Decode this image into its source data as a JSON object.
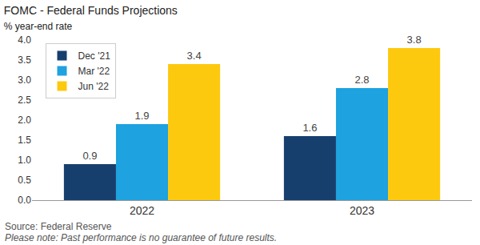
{
  "chart_data": {
    "type": "bar",
    "title": "FOMC - Federal Funds Projections",
    "subtitle": "% year-end rate",
    "categories": [
      "2022",
      "2023"
    ],
    "series": [
      {
        "name": "Dec '21",
        "color": "#173f6e",
        "values": [
          0.9,
          1.6
        ]
      },
      {
        "name": "Mar '22",
        "color": "#1ea2e0",
        "values": [
          1.9,
          2.8
        ]
      },
      {
        "name": "Jun '22",
        "color": "#fdc90f",
        "values": [
          3.4,
          3.8
        ]
      }
    ],
    "ylim": [
      0,
      4
    ],
    "yticks": [
      {
        "value": 0,
        "label": "0.0"
      },
      0.5,
      {
        "value": 1,
        "label": "1.0"
      },
      1.5,
      {
        "value": 2,
        "label": "2.0"
      },
      2.5,
      {
        "value": 3,
        "label": "3.0"
      },
      3.5,
      {
        "value": 4,
        "label": "4.0"
      }
    ],
    "grid": false,
    "legend": "top-left",
    "data_labels": true,
    "annotations": [
      "Source: Federal Reserve",
      "Please note: Past performance is no guarantee of future results."
    ]
  }
}
